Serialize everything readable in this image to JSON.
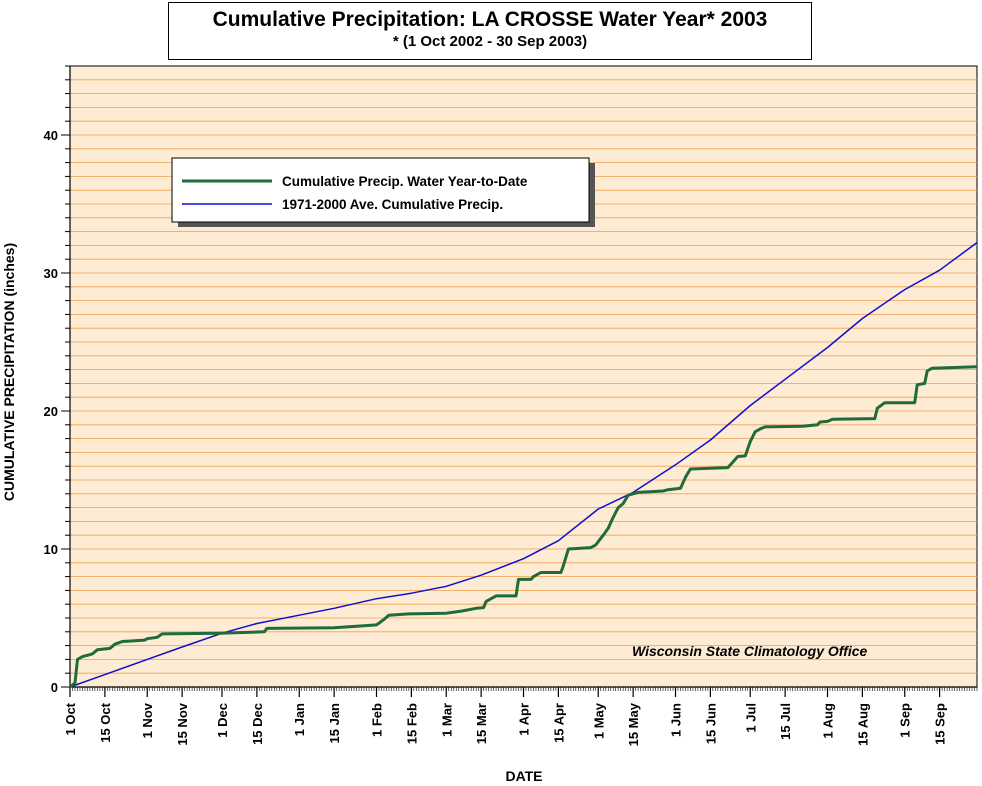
{
  "chart_data": {
    "type": "line",
    "title": "Cumulative Precipitation: LA CROSSE Water Year* 2003",
    "subtitle": "* (1 Oct 2002 - 30 Sep 2003)",
    "xlabel": "DATE",
    "ylabel": "CUMULATIVE PRECIPITATION (inches)",
    "xlim": [
      "2002-10-01",
      "2003-09-30"
    ],
    "ylim": [
      0,
      45
    ],
    "x_tick_labels": [
      "1 Oct",
      "15 Oct",
      "1 Nov",
      "15 Nov",
      "1 Dec",
      "15 Dec",
      "1 Jan",
      "15 Jan",
      "1 Feb",
      "15 Feb",
      "1 Mar",
      "15 Mar",
      "1 Apr",
      "15 Apr",
      "1 May",
      "15 May",
      "1 Jun",
      "15 Jun",
      "1 Jul",
      "15 Jul",
      "1 Aug",
      "15 Aug",
      "1 Sep",
      "15 Sep"
    ],
    "x_tick_dates": [
      "2002-10-01",
      "2002-10-15",
      "2002-11-01",
      "2002-11-15",
      "2002-12-01",
      "2002-12-15",
      "2003-01-01",
      "2003-01-15",
      "2003-02-01",
      "2003-02-15",
      "2003-03-01",
      "2003-03-15",
      "2003-04-01",
      "2003-04-15",
      "2003-05-01",
      "2003-05-15",
      "2003-06-01",
      "2003-06-15",
      "2003-07-01",
      "2003-07-15",
      "2003-08-01",
      "2003-08-15",
      "2003-09-01",
      "2003-09-15"
    ],
    "y_ticks": [
      0,
      10,
      20,
      30,
      40
    ],
    "grid": true,
    "legend_position": "top-left",
    "credit": "Wisconsin State Climatology Office",
    "colors": {
      "plot_background": "#fdebd3",
      "grid": "#f0a050",
      "observed": "#1f6b3a",
      "normal": "#1010cc"
    },
    "series": [
      {
        "name": "Cumulative Precip.  Water Year-to-Date",
        "color": "#1f6b3a",
        "points": [
          [
            "2002-10-01",
            0.0
          ],
          [
            "2002-10-03",
            0.3
          ],
          [
            "2002-10-04",
            2.0
          ],
          [
            "2002-10-06",
            2.2
          ],
          [
            "2002-10-08",
            2.3
          ],
          [
            "2002-10-10",
            2.4
          ],
          [
            "2002-10-12",
            2.7
          ],
          [
            "2002-10-17",
            2.8
          ],
          [
            "2002-10-19",
            3.1
          ],
          [
            "2002-10-22",
            3.3
          ],
          [
            "2002-10-31",
            3.4
          ],
          [
            "2002-11-01",
            3.5
          ],
          [
            "2002-11-05",
            3.6
          ],
          [
            "2002-11-07",
            3.85
          ],
          [
            "2002-11-30",
            3.9
          ],
          [
            "2002-12-18",
            4.0
          ],
          [
            "2002-12-19",
            4.25
          ],
          [
            "2003-01-15",
            4.3
          ],
          [
            "2003-01-24",
            4.4
          ],
          [
            "2003-02-01",
            4.5
          ],
          [
            "2003-02-04",
            4.9
          ],
          [
            "2003-02-06",
            5.2
          ],
          [
            "2003-02-14",
            5.3
          ],
          [
            "2003-03-01",
            5.35
          ],
          [
            "2003-03-07",
            5.5
          ],
          [
            "2003-03-13",
            5.7
          ],
          [
            "2003-03-16",
            5.75
          ],
          [
            "2003-03-17",
            6.2
          ],
          [
            "2003-03-19",
            6.4
          ],
          [
            "2003-03-21",
            6.6
          ],
          [
            "2003-03-29",
            6.6
          ],
          [
            "2003-03-30",
            7.8
          ],
          [
            "2003-04-04",
            7.8
          ],
          [
            "2003-04-05",
            8.0
          ],
          [
            "2003-04-08",
            8.3
          ],
          [
            "2003-04-16",
            8.3
          ],
          [
            "2003-04-17",
            8.8
          ],
          [
            "2003-04-19",
            10.0
          ],
          [
            "2003-04-28",
            10.1
          ],
          [
            "2003-04-30",
            10.3
          ],
          [
            "2003-05-03",
            11.0
          ],
          [
            "2003-05-05",
            11.5
          ],
          [
            "2003-05-07",
            12.3
          ],
          [
            "2003-05-09",
            13.0
          ],
          [
            "2003-05-11",
            13.3
          ],
          [
            "2003-05-13",
            13.9
          ],
          [
            "2003-05-17",
            14.1
          ],
          [
            "2003-05-27",
            14.2
          ],
          [
            "2003-05-29",
            14.3
          ],
          [
            "2003-06-03",
            14.4
          ],
          [
            "2003-06-05",
            15.2
          ],
          [
            "2003-06-07",
            15.8
          ],
          [
            "2003-06-22",
            15.9
          ],
          [
            "2003-06-24",
            16.3
          ],
          [
            "2003-06-26",
            16.7
          ],
          [
            "2003-06-29",
            16.75
          ],
          [
            "2003-07-01",
            17.8
          ],
          [
            "2003-07-03",
            18.5
          ],
          [
            "2003-07-05",
            18.7
          ],
          [
            "2003-07-07",
            18.85
          ],
          [
            "2003-07-22",
            18.9
          ],
          [
            "2003-07-28",
            19.0
          ],
          [
            "2003-07-29",
            19.2
          ],
          [
            "2003-08-01",
            19.25
          ],
          [
            "2003-08-03",
            19.4
          ],
          [
            "2003-08-20",
            19.45
          ],
          [
            "2003-08-21",
            20.2
          ],
          [
            "2003-08-24",
            20.6
          ],
          [
            "2003-09-05",
            20.6
          ],
          [
            "2003-09-06",
            21.9
          ],
          [
            "2003-09-09",
            22.0
          ],
          [
            "2003-09-10",
            22.9
          ],
          [
            "2003-09-12",
            23.1
          ],
          [
            "2003-09-30",
            23.2
          ]
        ]
      },
      {
        "name": "1971-2000 Ave. Cumulative Precip.",
        "color": "#1010cc",
        "points": [
          [
            "2002-10-01",
            0.0
          ],
          [
            "2002-10-15",
            0.9
          ],
          [
            "2002-11-01",
            2.0
          ],
          [
            "2002-11-15",
            2.9
          ],
          [
            "2002-12-01",
            3.9
          ],
          [
            "2002-12-15",
            4.6
          ],
          [
            "2003-01-01",
            5.2
          ],
          [
            "2003-01-15",
            5.7
          ],
          [
            "2003-02-01",
            6.4
          ],
          [
            "2003-02-15",
            6.8
          ],
          [
            "2003-03-01",
            7.3
          ],
          [
            "2003-03-15",
            8.1
          ],
          [
            "2003-04-01",
            9.3
          ],
          [
            "2003-04-15",
            10.6
          ],
          [
            "2003-05-01",
            12.9
          ],
          [
            "2003-05-15",
            14.1
          ],
          [
            "2003-06-01",
            16.1
          ],
          [
            "2003-06-15",
            17.9
          ],
          [
            "2003-07-01",
            20.4
          ],
          [
            "2003-07-15",
            22.3
          ],
          [
            "2003-08-01",
            24.6
          ],
          [
            "2003-08-15",
            26.7
          ],
          [
            "2003-09-01",
            28.8
          ],
          [
            "2003-09-15",
            30.2
          ],
          [
            "2003-09-30",
            32.2
          ]
        ]
      }
    ]
  }
}
